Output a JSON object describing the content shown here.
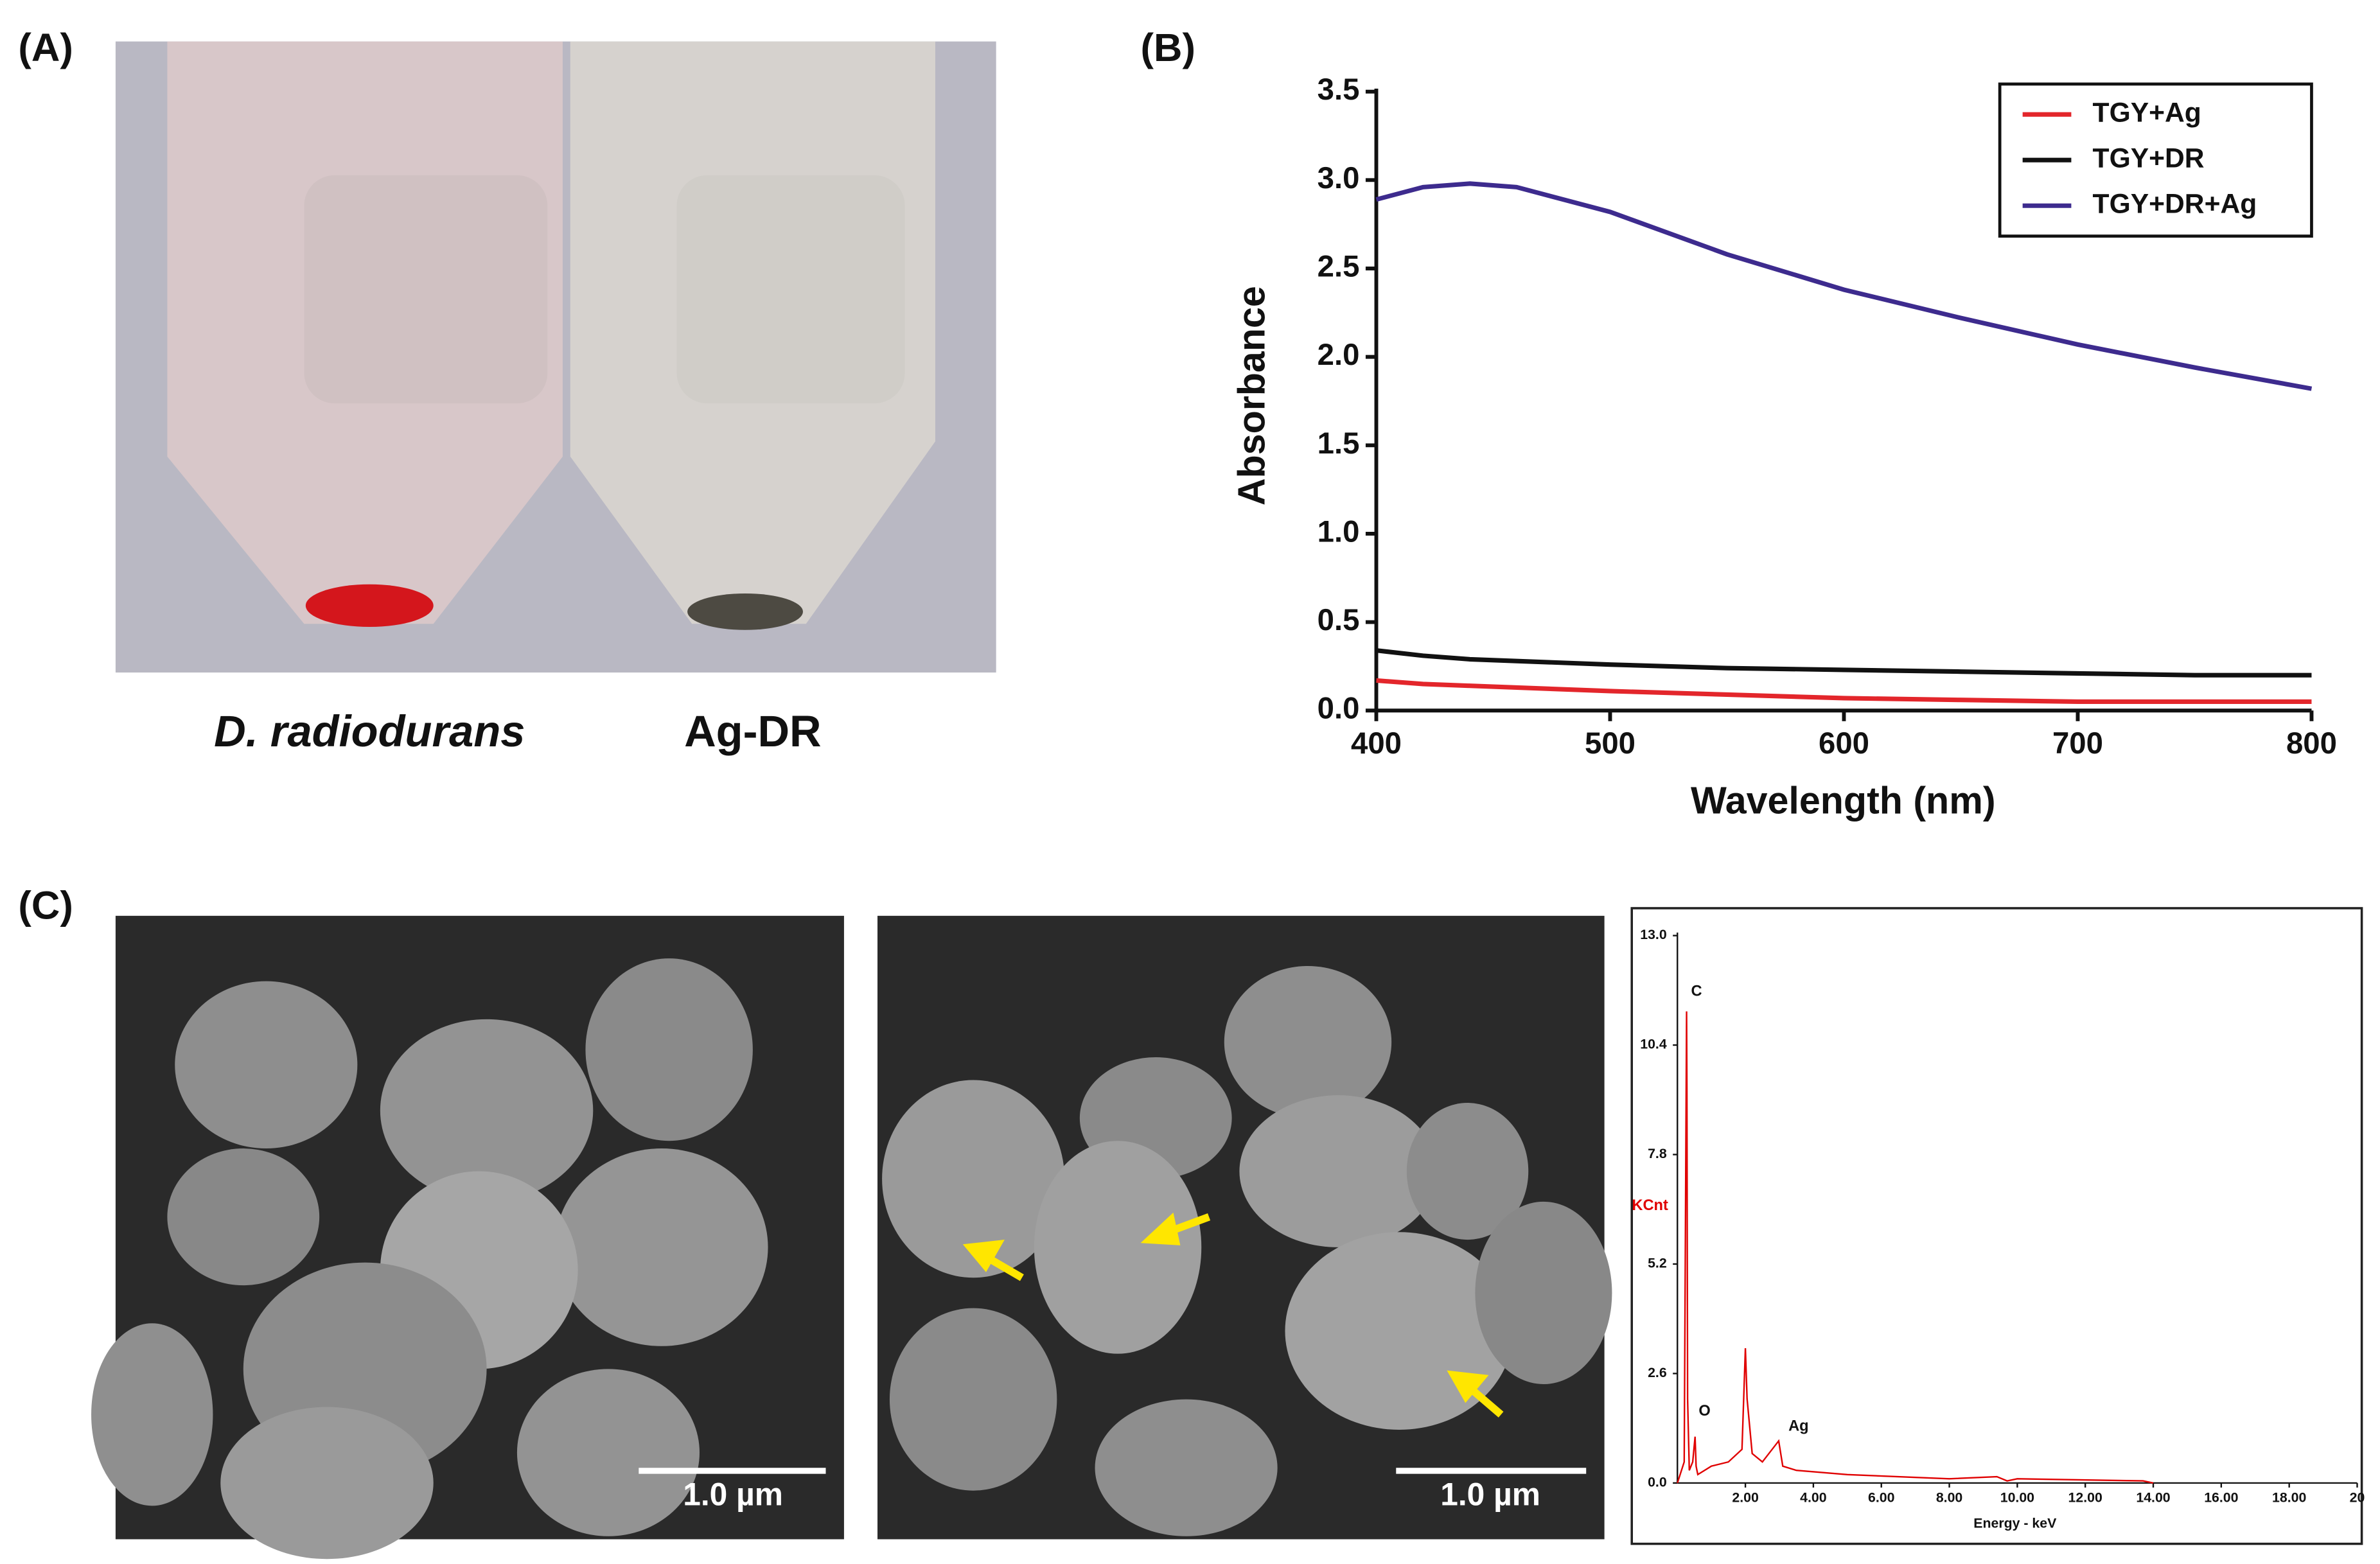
{
  "panels": {
    "a": "(A)",
    "b": "(B)",
    "c": "(C)"
  },
  "photo_labels": [
    "D. radiodurans",
    "Ag-DR"
  ],
  "scale_bars": [
    "1.0 µm",
    "1.0 µm"
  ],
  "chart_data": [
    {
      "type": "line",
      "xlabel": "Wavelength (nm)",
      "ylabel": "Absorbance",
      "x": [
        400,
        420,
        440,
        460,
        500,
        550,
        600,
        650,
        700,
        750,
        800
      ],
      "series": [
        {
          "name": "TGY+Ag",
          "color": "#e3262b",
          "values": [
            0.17,
            0.15,
            0.14,
            0.13,
            0.11,
            0.09,
            0.07,
            0.06,
            0.05,
            0.05,
            0.05
          ]
        },
        {
          "name": "TGY+DR",
          "color": "#111111",
          "values": [
            0.34,
            0.31,
            0.29,
            0.28,
            0.26,
            0.24,
            0.23,
            0.22,
            0.21,
            0.2,
            0.2
          ]
        },
        {
          "name": "TGY+DR+Ag",
          "color": "#3d2b8e",
          "values": [
            2.89,
            2.96,
            2.98,
            2.96,
            2.82,
            2.58,
            2.38,
            2.22,
            2.07,
            1.94,
            1.82
          ]
        }
      ],
      "xlim": [
        400,
        800
      ],
      "xticks": [
        400,
        500,
        600,
        700,
        800
      ],
      "ylim": [
        0,
        3.5
      ],
      "yticks": [
        {
          "value": 0,
          "label": "0.0"
        },
        0.5,
        {
          "value": 1,
          "label": "1.0"
        },
        1.5,
        {
          "value": 2,
          "label": "2.0"
        },
        2.5,
        {
          "value": 3,
          "label": "3.0"
        },
        3.5
      ],
      "legend": "top-right"
    },
    {
      "type": "line",
      "xlabel": "Energy - keV",
      "ylabel": "KCnt",
      "color": "#e00000",
      "x": [
        0,
        0.2,
        0.27,
        0.28,
        0.3,
        0.35,
        0.45,
        0.52,
        0.55,
        0.6,
        1.0,
        1.5,
        1.9,
        2.0,
        2.05,
        2.2,
        2.5,
        2.98,
        3.1,
        3.5,
        5,
        8,
        9.4,
        9.7,
        10,
        13.7,
        14
      ],
      "values": [
        0,
        0.5,
        11.2,
        9.4,
        2,
        0.3,
        0.5,
        1.1,
        0.4,
        0.2,
        0.4,
        0.5,
        0.8,
        3.2,
        2,
        0.7,
        0.5,
        1,
        0.4,
        0.3,
        0.2,
        0.1,
        0.15,
        0.05,
        0.1,
        0.05,
        0
      ],
      "annotations": [
        "C",
        "O",
        "Ag"
      ],
      "xlim": [
        0,
        20
      ],
      "xticks": [
        {
          "value": 2,
          "label": "2.00"
        },
        {
          "value": 4,
          "label": "4.00"
        },
        {
          "value": 6,
          "label": "6.00"
        },
        {
          "value": 8,
          "label": "8.00"
        },
        {
          "value": 10,
          "label": "10.00"
        },
        {
          "value": 12,
          "label": "12.00"
        },
        {
          "value": 14,
          "label": "14.00"
        },
        {
          "value": 16,
          "label": "16.00"
        },
        {
          "value": 18,
          "label": "18.00"
        },
        20
      ],
      "ylim": [
        0,
        13
      ],
      "yticks": [
        {
          "value": 0,
          "label": "0.0"
        },
        2.6,
        5.2,
        7.8,
        10.4,
        {
          "value": 13,
          "label": "13.0"
        }
      ]
    }
  ]
}
